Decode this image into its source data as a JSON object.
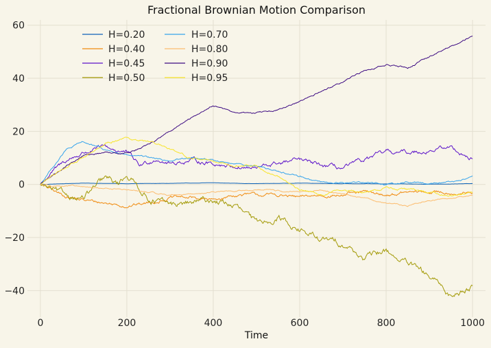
{
  "chart_data": {
    "type": "line",
    "title": "Fractional Brownian Motion Comparison",
    "xlabel": "Time",
    "ylabel": "",
    "xlim": [
      -30,
      1030
    ],
    "ylim": [
      -50,
      62
    ],
    "xticks": [
      0,
      200,
      400,
      600,
      800,
      1000
    ],
    "yticks": [
      -40,
      -20,
      0,
      20,
      40,
      60
    ],
    "xtick_labels": [
      "0",
      "200",
      "400",
      "600",
      "800",
      "1000"
    ],
    "ytick_labels": [
      "−40",
      "−20",
      "0",
      "20",
      "40",
      "60"
    ],
    "grid": true,
    "legend": {
      "position": "top-left",
      "columns": 2
    },
    "series": [
      {
        "name": "H=0.20",
        "color": "#0d62b7",
        "roughness": 0.05,
        "x": [
          0,
          100,
          200,
          300,
          400,
          500,
          600,
          700,
          800,
          900,
          1000
        ],
        "values": [
          0,
          0.5,
          0.3,
          0.4,
          0.6,
          0.3,
          0.5,
          0.3,
          0.2,
          0.1,
          0.3
        ]
      },
      {
        "name": "H=0.40",
        "color": "#f08a0e",
        "roughness": 0.8,
        "x": [
          0,
          50,
          100,
          150,
          200,
          250,
          300,
          350,
          400,
          450,
          500,
          550,
          600,
          650,
          700,
          750,
          800,
          850,
          900,
          950,
          1000
        ],
        "values": [
          0,
          -4,
          -6,
          -7,
          -8,
          -7,
          -5,
          -5,
          -6,
          -4,
          -4,
          -4,
          -5,
          -4,
          -4,
          -3,
          -4,
          -3,
          -3,
          -3,
          -3.5
        ]
      },
      {
        "name": "H=0.45",
        "color": "#5b12c9",
        "roughness": 1.1,
        "x": [
          0,
          30,
          60,
          100,
          150,
          200,
          230,
          270,
          300,
          350,
          400,
          450,
          500,
          550,
          600,
          650,
          700,
          750,
          800,
          850,
          900,
          950,
          1000
        ],
        "values": [
          0,
          5,
          9,
          12,
          14,
          12,
          7,
          10,
          8,
          9,
          8,
          7,
          6,
          8,
          9,
          7,
          6,
          9,
          12,
          12,
          13,
          14,
          9.5
        ]
      },
      {
        "name": "H=0.50",
        "color": "#a39a07",
        "roughness": 1.6,
        "x": [
          0,
          50,
          100,
          150,
          180,
          200,
          250,
          300,
          350,
          400,
          450,
          500,
          550,
          600,
          650,
          700,
          750,
          800,
          850,
          900,
          950,
          1000
        ],
        "values": [
          0,
          -4,
          -5,
          2,
          0,
          4,
          -5,
          -8,
          -7,
          -6,
          -8,
          -15,
          -12,
          -17,
          -21,
          -22,
          -28,
          -25,
          -30,
          -35,
          -42,
          -38
        ]
      },
      {
        "name": "H=0.70",
        "color": "#34a3ec",
        "roughness": 0.45,
        "x": [
          0,
          30,
          60,
          100,
          150,
          200,
          250,
          300,
          350,
          400,
          450,
          500,
          550,
          600,
          650,
          700,
          750,
          800,
          850,
          900,
          950,
          1000
        ],
        "values": [
          0,
          7,
          13,
          16,
          13,
          11,
          10,
          9,
          10,
          9,
          8,
          7,
          5,
          3,
          1,
          0.5,
          1,
          0,
          1,
          0.5,
          1,
          2.5
        ]
      },
      {
        "name": "H=0.80",
        "color": "#fcbc6e",
        "roughness": 0.35,
        "x": [
          0,
          100,
          200,
          250,
          300,
          400,
          500,
          600,
          650,
          700,
          750,
          800,
          850,
          900,
          950,
          1000
        ],
        "values": [
          0,
          -1,
          -2,
          -3,
          -4,
          -3,
          -2,
          -3,
          -2,
          -4,
          -5,
          -7,
          -8,
          -6,
          -5,
          -4
        ]
      },
      {
        "name": "H=0.90",
        "color": "#3c0a82",
        "roughness": 0.4,
        "x": [
          0,
          50,
          100,
          150,
          200,
          250,
          300,
          350,
          400,
          450,
          500,
          550,
          600,
          650,
          700,
          750,
          800,
          850,
          900,
          950,
          1000
        ],
        "values": [
          0,
          6,
          11,
          12,
          12,
          15,
          20,
          25,
          30,
          27,
          27,
          28,
          31,
          35,
          39,
          43,
          45,
          44,
          48,
          52,
          56
        ]
      },
      {
        "name": "H=0.95",
        "color": "#f7e42a",
        "roughness": 0.55,
        "x": [
          0,
          50,
          100,
          150,
          200,
          250,
          300,
          350,
          400,
          450,
          500,
          550,
          600,
          650,
          700,
          750,
          800,
          850,
          900,
          950,
          1000
        ],
        "values": [
          0,
          6,
          10,
          15,
          18,
          16,
          13,
          10,
          9,
          7,
          7,
          3,
          -2,
          -4,
          -2,
          -3,
          -1,
          -2,
          -3,
          -4,
          -3
        ]
      }
    ]
  }
}
